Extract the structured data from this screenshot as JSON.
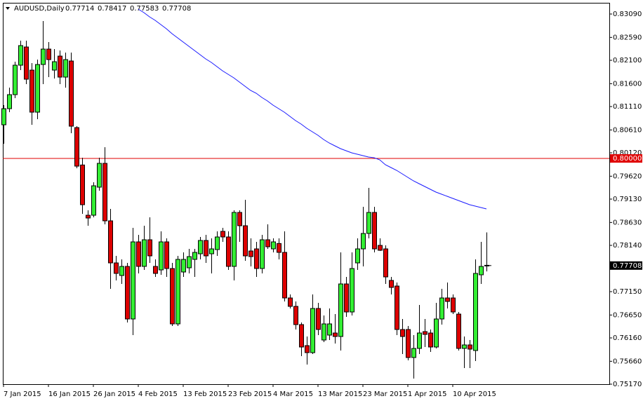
{
  "chart_data": {
    "type": "candlestick",
    "title": "AUDUSD,Daily",
    "x": [
      "7 Jan 2015",
      null,
      null,
      null,
      null,
      null,
      null,
      null,
      "16 Jan 2015",
      null,
      null,
      null,
      null,
      null,
      null,
      null,
      "26 Jan 2015",
      null,
      null,
      null,
      null,
      null,
      null,
      null,
      "4 Feb 2015",
      null,
      null,
      null,
      null,
      null,
      null,
      null,
      "13 Feb 2015",
      null,
      null,
      null,
      null,
      null,
      null,
      null,
      "23 Feb 2015",
      null,
      null,
      null,
      null,
      null,
      null,
      null,
      "4 Mar 2015",
      null,
      null,
      null,
      null,
      null,
      null,
      null,
      "13 Mar 2015",
      null,
      null,
      null,
      null,
      null,
      null,
      null,
      "23 Mar 2015",
      null,
      null,
      null,
      null,
      null,
      null,
      null,
      "1 Apr 2015",
      null,
      null,
      null,
      null,
      null,
      null,
      null,
      "10 Apr 2015",
      null,
      null,
      null,
      null,
      null,
      null
    ],
    "open": [
      0.8072,
      0.81065,
      0.81365,
      0.81995,
      0.82385,
      0.8189,
      0.8099,
      0.8201,
      0.8234,
      0.8189,
      0.8219,
      0.8174,
      0.82085,
      0.8066,
      0.7986,
      0.78785,
      0.78785,
      0.79385,
      0.79895,
      0.78665,
      0.77765,
      0.77495,
      0.7769,
      0.76565,
      0.78215,
      0.7769,
      0.7826,
      0.7769,
      0.77615,
      0.78215,
      0.77645,
      0.7646,
      0.7757,
      0.7766,
      0.7784,
      0.7796,
      0.78245,
      0.7796,
      0.7805,
      0.7844,
      0.7832,
      0.7769,
      0.78845,
      0.7856,
      0.7802,
      0.78065,
      0.77645,
      0.7826,
      0.78065,
      0.7818,
      0.7799,
      0.77015,
      0.76835,
      0.76445,
      0.75995,
      0.75845,
      0.7679,
      0.76115,
      0.7622,
      0.76265,
      0.7619,
      0.77315,
      0.76715,
      0.77765,
      0.78065,
      0.78395,
      0.78845,
      0.7814,
      0.78065,
      0.7739,
      0.7727,
      0.7634,
      0.7634,
      0.7574,
      0.75935,
      0.76295,
      0.76265,
      0.75965,
      0.76565,
      0.77015,
      0.77015,
      0.7667,
      0.75935,
      0.7601,
      0.7589,
      0.7751,
      0.77714
    ],
    "high": [
      0.8114,
      0.81515,
      0.8207,
      0.8252,
      0.8252,
      0.8204,
      0.82115,
      0.8294,
      0.8249,
      0.8234,
      0.8231,
      0.82265,
      0.82265,
      0.8069,
      0.80015,
      0.7889,
      0.7949,
      0.80015,
      0.8024,
      0.7892,
      0.77915,
      0.7784,
      0.77765,
      0.78515,
      0.78365,
      0.7856,
      0.7874,
      0.7784,
      0.7844,
      0.7829,
      0.77765,
      0.77915,
      0.7799,
      0.78065,
      0.78065,
      0.7832,
      0.78365,
      0.7829,
      0.7844,
      0.78515,
      0.7844,
      0.7889,
      0.7889,
      0.79115,
      0.7829,
      0.78215,
      0.78365,
      0.7859,
      0.7829,
      0.7829,
      0.7844,
      0.7709,
      0.7694,
      0.7649,
      0.7619,
      0.7709,
      0.7691,
      0.7664,
      0.7679,
      0.7667,
      0.7799,
      0.77465,
      0.7799,
      0.7829,
      0.78965,
      0.7937,
      0.78965,
      0.7829,
      0.7814,
      0.77465,
      0.77345,
      0.76565,
      0.76415,
      0.7622,
      0.76865,
      0.76565,
      0.7634,
      0.7691,
      0.7721,
      0.77345,
      0.7709,
      0.76715,
      0.7619,
      0.76115,
      0.7784,
      0.78215,
      0.78417
    ],
    "low": [
      0.80315,
      0.8099,
      0.8129,
      0.8189,
      0.8159,
      0.8072,
      0.8084,
      0.8159,
      0.8174,
      0.8171,
      0.8159,
      0.81515,
      0.8054,
      0.7979,
      0.78815,
      0.7856,
      0.7874,
      0.7931,
      0.7859,
      0.7721,
      0.7739,
      0.77315,
      0.7649,
      0.7622,
      0.7754,
      0.77615,
      0.77765,
      0.77465,
      0.7751,
      0.77465,
      0.76415,
      0.76415,
      0.77465,
      0.7754,
      0.77465,
      0.7784,
      0.77765,
      0.7754,
      0.77915,
      0.78215,
      0.77615,
      0.7739,
      0.78215,
      0.7781,
      0.7769,
      0.77465,
      0.7754,
      0.78065,
      0.7799,
      0.7784,
      0.7694,
      0.7679,
      0.7634,
      0.7577,
      0.7559,
      0.75815,
      0.7622,
      0.7607,
      0.76115,
      0.7604,
      0.7589,
      0.7661,
      0.7664,
      0.77615,
      0.7769,
      0.7829,
      0.7799,
      0.7802,
      0.77315,
      0.7709,
      0.7622,
      0.75815,
      0.7568,
      0.7529,
      0.75815,
      0.75965,
      0.7586,
      0.75935,
      0.76445,
      0.7679,
      0.7667,
      0.7589,
      0.75515,
      0.75515,
      0.75665,
      0.77315,
      0.77583
    ],
    "close": [
      0.81065,
      0.81365,
      0.81995,
      0.82415,
      0.81695,
      0.8099,
      0.8201,
      0.8234,
      0.82115,
      0.8207,
      0.8174,
      0.82115,
      0.8069,
      0.79835,
      0.7901,
      0.78725,
      0.79415,
      0.79895,
      0.78665,
      0.77765,
      0.7754,
      0.7769,
      0.76565,
      0.78215,
      0.7769,
      0.7826,
      0.77915,
      0.7754,
      0.78215,
      0.77645,
      0.7646,
      0.7784,
      0.7784,
      0.779,
      0.7799,
      0.78245,
      0.77915,
      0.78065,
      0.7832,
      0.7832,
      0.7769,
      0.78845,
      0.7856,
      0.77915,
      0.779,
      0.77645,
      0.7826,
      0.7811,
      0.78215,
      0.7799,
      0.77015,
      0.76835,
      0.76445,
      0.75965,
      0.75845,
      0.7679,
      0.7634,
      0.7646,
      0.7646,
      0.7619,
      0.77315,
      0.76715,
      0.77645,
      0.78065,
      0.78395,
      0.78845,
      0.78065,
      0.78035,
      0.77465,
      0.7724,
      0.7634,
      0.7619,
      0.7574,
      0.75935,
      0.76265,
      0.76235,
      0.75965,
      0.76565,
      0.77015,
      0.7694,
      0.76715,
      0.75935,
      0.7601,
      0.7592,
      0.7754,
      0.7769,
      0.77708
    ],
    "up_color": "#33ee33",
    "down_color": "#dd0000",
    "moving_average": {
      "color": "#1a1aff",
      "values": [
        null,
        null,
        null,
        null,
        null,
        null,
        null,
        null,
        null,
        null,
        null,
        null,
        null,
        null,
        null,
        null,
        null,
        null,
        null,
        null,
        null,
        null,
        null,
        null,
        0.83195,
        0.8312,
        0.8303,
        0.82955,
        0.82865,
        0.82775,
        0.8267,
        0.8258,
        0.8249,
        0.824,
        0.8231,
        0.8222,
        0.8213,
        0.82055,
        0.81965,
        0.81875,
        0.818,
        0.81725,
        0.81635,
        0.81545,
        0.81455,
        0.81395,
        0.81305,
        0.8123,
        0.8114,
        0.81065,
        0.8099,
        0.809,
        0.8081,
        0.80735,
        0.80645,
        0.8057,
        0.80495,
        0.80405,
        0.8033,
        0.8027,
        0.8021,
        0.80165,
        0.8012,
        0.8009,
        0.8006,
        0.8003,
        0.80015,
        0.7997,
        0.79865,
        0.79805,
        0.79745,
        0.7967,
        0.79595,
        0.7952,
        0.7946,
        0.794,
        0.7934,
        0.7928,
        0.79235,
        0.7919,
        0.79145,
        0.791,
        0.79055,
        0.7901,
        0.7898,
        0.7895,
        0.7892
      ]
    },
    "hline": {
      "value": 0.8,
      "label": "0.80000",
      "color": "#e00000"
    },
    "ylim": [
      0.7517,
      0.8333
    ],
    "yticks": [
      {
        "value": 0.8309,
        "label": "0.83090"
      },
      {
        "value": 0.8259,
        "label": "0.82590"
      },
      {
        "value": 0.821,
        "label": "0.82100"
      },
      {
        "value": 0.816,
        "label": "0.81600"
      },
      {
        "value": 0.8111,
        "label": "0.81110"
      },
      {
        "value": 0.8061,
        "label": "0.80610"
      },
      {
        "value": 0.8012,
        "label": "0.80120"
      },
      {
        "value": 0.7962,
        "label": "0.79620"
      },
      {
        "value": 0.7913,
        "label": "0.79130"
      },
      {
        "value": 0.7863,
        "label": "0.78630"
      },
      {
        "value": 0.7814,
        "label": "0.78140"
      },
      {
        "value": 0.7715,
        "label": "0.77150"
      },
      {
        "value": 0.7665,
        "label": "0.76650"
      },
      {
        "value": 0.7616,
        "label": "0.76160"
      },
      {
        "value": 0.7566,
        "label": "0.75660"
      },
      {
        "value": 0.7517,
        "label": "0.75170"
      }
    ]
  }
}
